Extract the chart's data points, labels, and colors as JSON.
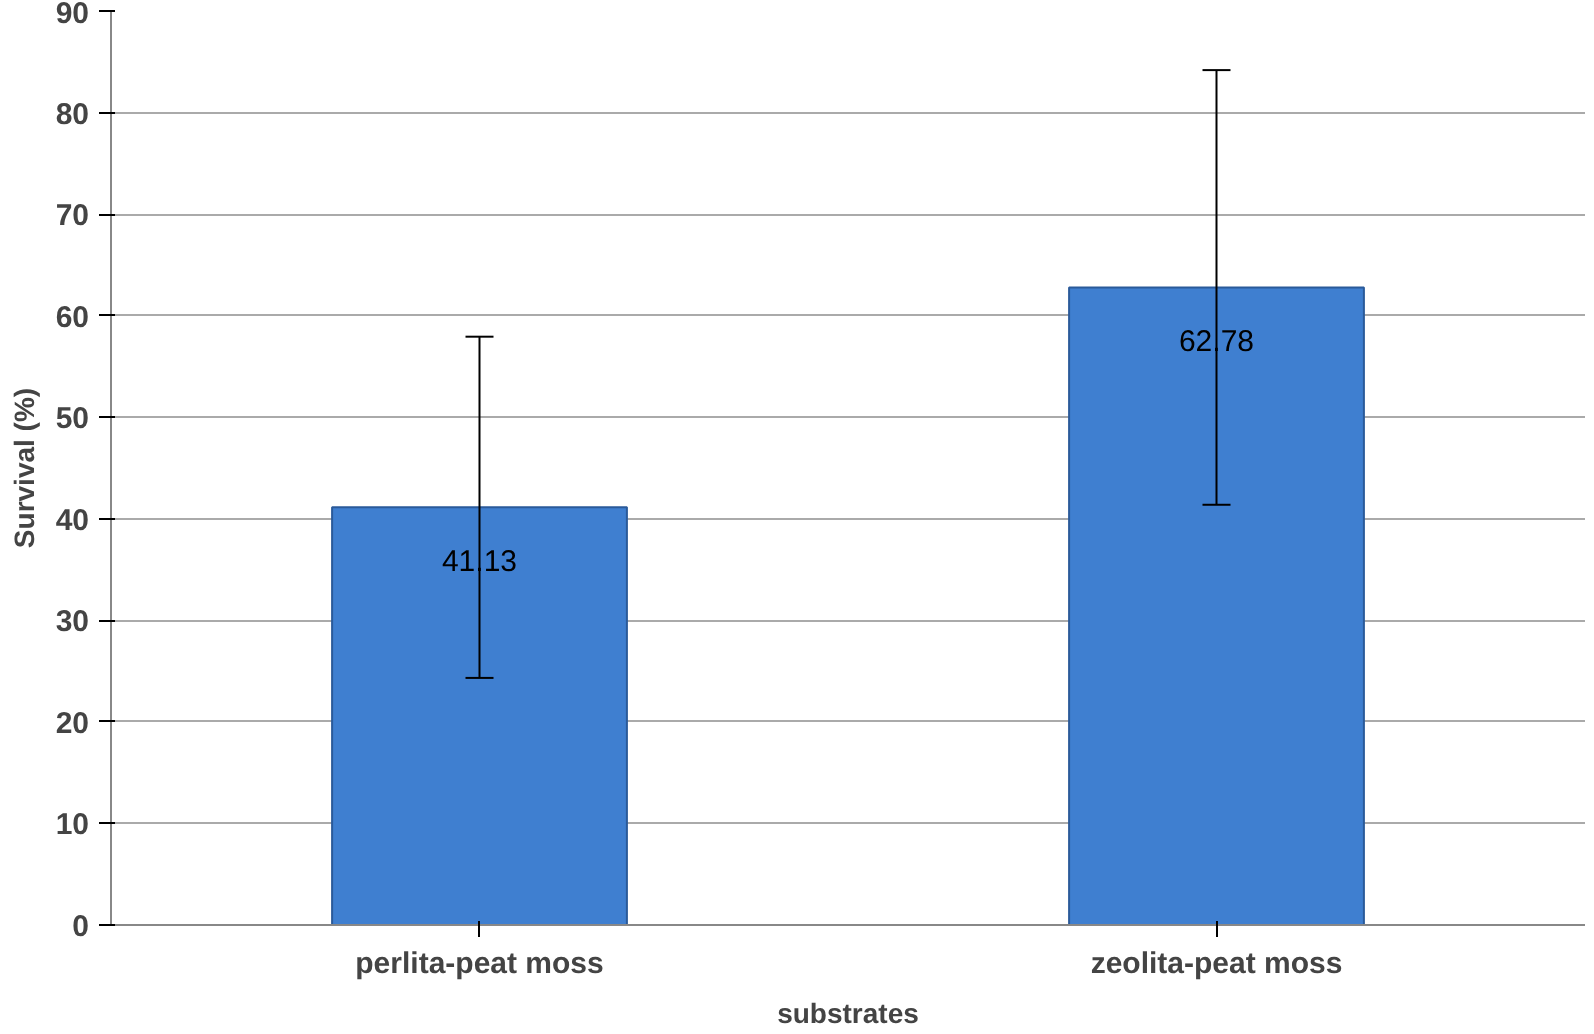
{
  "chart_data": {
    "type": "bar",
    "xlabel": "substrates",
    "ylabel": "Survival (%)",
    "categories": [
      "perlita-peat moss",
      "zeolita-peat moss"
    ],
    "values": [
      41.13,
      62.78
    ],
    "color": "#3f7fd0",
    "errors": [
      16.8,
      21.4
    ],
    "data_labels": true,
    "ylim": [
      0,
      90
    ],
    "yticks": [
      0,
      10,
      20,
      30,
      40,
      50,
      60,
      70,
      80,
      90
    ],
    "grid": "y"
  }
}
